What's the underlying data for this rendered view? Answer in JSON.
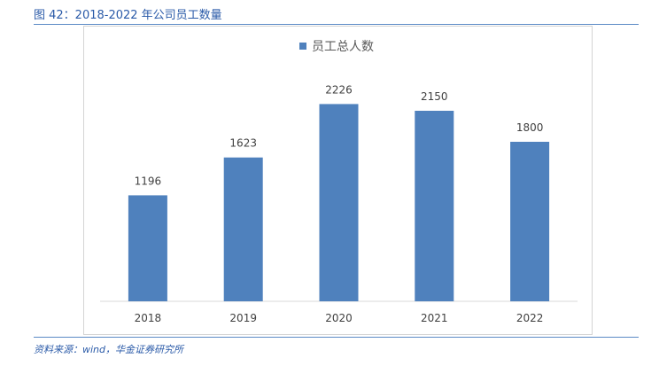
{
  "figure_title": "图 42：2018-2022 年公司员工数量",
  "source": "资料来源：wind，华金证券研究所",
  "colors": {
    "bar": "#4f81bd",
    "accent": "#2a5aa8"
  },
  "chart_data": {
    "type": "bar",
    "title": "",
    "legend": {
      "position": "top-center",
      "entries": [
        "员工总人数"
      ]
    },
    "categories": [
      "2018",
      "2019",
      "2020",
      "2021",
      "2022"
    ],
    "series": [
      {
        "name": "员工总人数",
        "values": [
          1196,
          1623,
          2226,
          2150,
          1800
        ]
      }
    ],
    "data_labels": [
      "1196",
      "1623",
      "2226",
      "2150",
      "1800"
    ],
    "xlabel": "",
    "ylabel": "",
    "ylim": [
      0,
      2600
    ],
    "grid": false
  }
}
